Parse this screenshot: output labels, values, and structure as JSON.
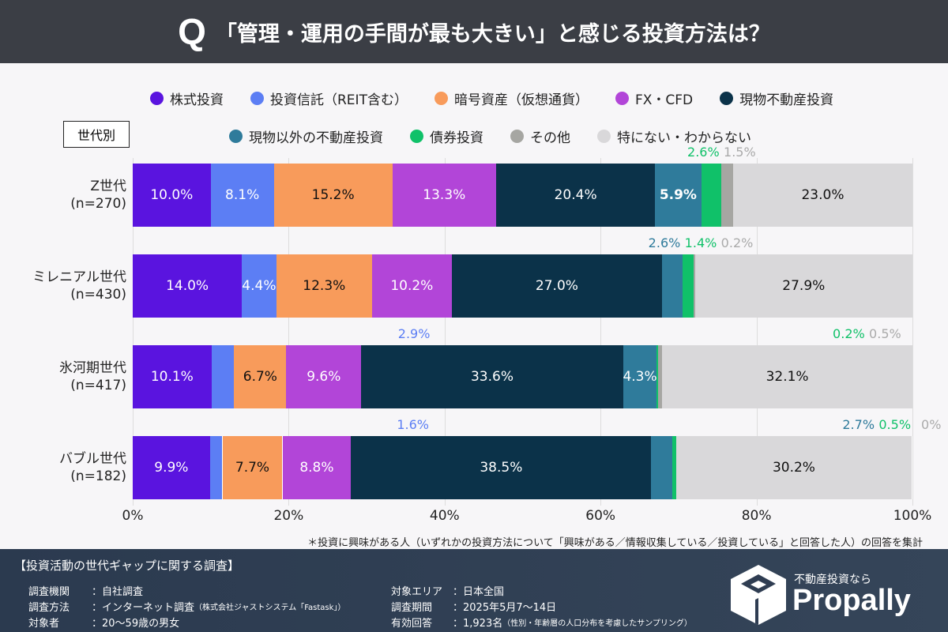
{
  "header": {
    "q": "Q",
    "title": "「管理・運用の手間が最も大きい」と感じる投資方法は？"
  },
  "group_label": "世代別",
  "note": "＊投資に興味がある人（いずれかの投資方法について「興味がある／情報収集している／投資している」と回答した人）の回答を集計",
  "chart_data": {
    "type": "bar",
    "orientation": "horizontal",
    "stacked": true,
    "categories": [
      {
        "name": "Z世代",
        "n": "(n=270)"
      },
      {
        "name": "ミレニアル世代",
        "n": "(n=430)"
      },
      {
        "name": "氷河期世代",
        "n": "(n=417)"
      },
      {
        "name": "バブル世代",
        "n": "(n=182)"
      }
    ],
    "xlim": [
      0,
      100
    ],
    "xticks": [
      "0%",
      "20%",
      "40%",
      "60%",
      "80%",
      "100%"
    ],
    "grid": true,
    "legend": "top",
    "series": [
      {
        "name": "株式投資",
        "color": "#5a14df",
        "values": [
          10.0,
          14.0,
          10.1,
          9.9
        ]
      },
      {
        "name": "投資信託（REIT含む）",
        "color": "#5c7ef4",
        "values": [
          8.1,
          4.4,
          2.9,
          1.6
        ]
      },
      {
        "name": "暗号資産（仮想通貨）",
        "color": "#f89b5b",
        "values": [
          15.2,
          12.3,
          6.7,
          7.7
        ]
      },
      {
        "name": "FX・CFD",
        "color": "#b245d8",
        "values": [
          13.3,
          10.2,
          9.6,
          8.8
        ]
      },
      {
        "name": "現物不動産投資",
        "color": "#0b3249",
        "values": [
          20.4,
          27.0,
          33.6,
          38.5
        ]
      },
      {
        "name": "現物以外の不動産投資",
        "color": "#2f7b9b",
        "values": [
          5.9,
          2.6,
          4.3,
          2.7
        ]
      },
      {
        "name": "債券投資",
        "color": "#10c169",
        "values": [
          2.6,
          1.4,
          0.2,
          0.5
        ]
      },
      {
        "name": "その他",
        "color": "#a6a6a2",
        "values": [
          1.5,
          0.2,
          0.5,
          0
        ]
      },
      {
        "name": "特にない・わからない",
        "color": "#d9d8da",
        "values": [
          23.0,
          27.9,
          32.1,
          30.2
        ]
      }
    ],
    "labels": [
      [
        "10.0%",
        "8.1%",
        "15.2%",
        "13.3%",
        "20.4%",
        "5.9%",
        "2.6%",
        "1.5%",
        "23.0%"
      ],
      [
        "14.0%",
        "4.4%",
        "12.3%",
        "10.2%",
        "27.0%",
        "2.6%",
        "1.4%",
        "0.2%",
        "27.9%"
      ],
      [
        "10.1%",
        "2.9%",
        "6.7%",
        "9.6%",
        "33.6%",
        "4.3%",
        "0.2%",
        "0.5%",
        "32.1%"
      ],
      [
        "9.9%",
        "1.6%",
        "7.7%",
        "8.8%",
        "38.5%",
        "2.7%",
        "0.5%",
        "0%",
        "30.2%"
      ]
    ]
  },
  "footer": {
    "title": "【投資活動の世代ギャップに関する調査】",
    "rows": [
      {
        "k": "調査機関",
        "v": "：自社調査",
        "s": ""
      },
      {
        "k": "調査方法",
        "v": "：インターネット調査",
        "s": "（株式会社ジャストシステム「Fastask」）"
      },
      {
        "k": "対象者",
        "v": "：20〜59歳の男女",
        "s": ""
      },
      {
        "k": "対象エリア",
        "v": "：日本全国",
        "s": ""
      },
      {
        "k": "調査期間",
        "v": "：2025年5月7〜14日",
        "s": ""
      },
      {
        "k": "有効回答",
        "v": "：1,923名",
        "s": "（性別・年齢層の人口分布を考慮したサンプリング）"
      }
    ],
    "brand_tagline": "不動産投資なら",
    "brand": "Propally"
  }
}
